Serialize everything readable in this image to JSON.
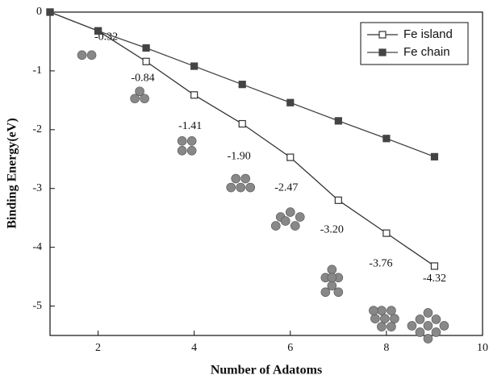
{
  "chart_data": {
    "type": "line",
    "x_label": "Number of Adatoms",
    "y_label": "Binding Energy(eV)",
    "x": [
      1,
      2,
      3,
      4,
      5,
      6,
      7,
      8,
      9
    ],
    "series": [
      {
        "name": "Fe island",
        "color": "#333333",
        "marker": "open-square",
        "values": [
          0,
          -0.32,
          -0.84,
          -1.41,
          -1.9,
          -2.47,
          -3.2,
          -3.76,
          -4.32
        ],
        "value_labels": [
          null,
          "-0.32",
          "-0.84",
          "-1.41",
          "-1.90",
          "-2.47",
          "-3.20",
          "-3.76",
          "-4.32"
        ]
      },
      {
        "name": "Fe chain",
        "color": "#444444",
        "marker": "filled-square",
        "values": [
          0,
          -0.32,
          -0.61,
          -0.92,
          -1.23,
          -1.54,
          -1.85,
          -2.15,
          -2.46
        ]
      }
    ],
    "xlim": [
      1,
      10
    ],
    "xticks": [
      2,
      4,
      6,
      8,
      10
    ],
    "ylim": [
      -5.5,
      0
    ],
    "yticks": [
      0,
      -1,
      -2,
      -3,
      -4,
      -5
    ],
    "legend": "top-right"
  }
}
